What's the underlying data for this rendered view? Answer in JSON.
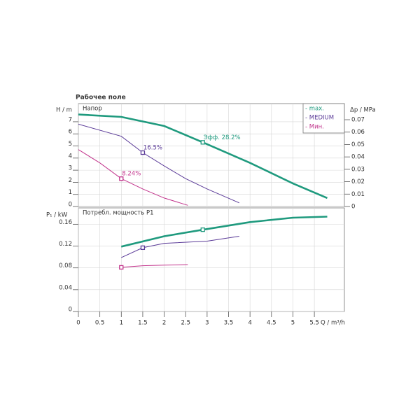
{
  "chart_data": [
    {
      "type": "line",
      "title": "Рабочее поле",
      "label": "Напор",
      "ylabel": "H / m",
      "y2label": "Δp / MPa",
      "ylim": [
        0,
        8.5
      ],
      "yticks": [
        0,
        1,
        2,
        3,
        4,
        5,
        6,
        7
      ],
      "y2lim": [
        0,
        0.083
      ],
      "y2ticks": [
        0,
        0.01,
        0.02,
        0.03,
        0.04,
        0.05,
        0.06,
        0.07
      ],
      "grid": true,
      "legend": "upper right",
      "series": [
        {
          "name": "- max.",
          "color": "#1f9a7e",
          "x": [
            0,
            1,
            2,
            2.9,
            4,
            5,
            5.8
          ],
          "values": [
            7.6,
            7.4,
            6.65,
            5.3,
            3.6,
            1.9,
            0.7
          ]
        },
        {
          "name": "- MEDIUM",
          "color": "#5b3b98",
          "x": [
            0,
            1,
            1.5,
            2,
            2.5,
            3,
            3.75
          ],
          "values": [
            6.8,
            5.8,
            4.45,
            3.35,
            2.3,
            1.45,
            0.3
          ]
        },
        {
          "name": "- Мин.",
          "color": "#c2348c",
          "x": [
            0,
            0.5,
            1,
            1.5,
            2,
            2.55
          ],
          "values": [
            4.7,
            3.6,
            2.3,
            1.45,
            0.7,
            0.1
          ]
        }
      ],
      "annotations": [
        {
          "text": "Эфф.  28.2%",
          "x": 2.9,
          "y": 5.3,
          "color": "#1f9a7e"
        },
        {
          "text": "16.5%",
          "x": 1.5,
          "y": 4.45,
          "color": "#5b3b98"
        },
        {
          "text": "8.24%",
          "x": 1,
          "y": 2.3,
          "color": "#c2348c"
        }
      ]
    },
    {
      "type": "line",
      "label": "Потребл. мощность P1",
      "ylabel": "P₁ / kW",
      "xlabel": "Q / m³/h",
      "xlim": [
        0,
        6.2
      ],
      "xticks": [
        0,
        0.5,
        1,
        1.5,
        2,
        2.5,
        3,
        3.5,
        4,
        4.5,
        5,
        5.5
      ],
      "ylim": [
        0,
        0.19
      ],
      "yticks": [
        0,
        0.04,
        0.08,
        0.12,
        0.16
      ],
      "grid": true,
      "series": [
        {
          "color": "#1f9a7e",
          "x": [
            1,
            2,
            2.9,
            4,
            5,
            5.8
          ],
          "values": [
            0.119,
            0.138,
            0.15,
            0.164,
            0.172,
            0.174
          ]
        },
        {
          "color": "#5b3b98",
          "x": [
            1,
            1.5,
            2,
            3,
            3.75
          ],
          "values": [
            0.099,
            0.117,
            0.125,
            0.129,
            0.138
          ]
        },
        {
          "color": "#c2348c",
          "x": [
            1,
            1.5,
            2,
            2.55
          ],
          "values": [
            0.081,
            0.084,
            0.085,
            0.086
          ]
        }
      ],
      "markers": [
        {
          "x": 2.9,
          "y": 0.15,
          "color": "#1f9a7e"
        },
        {
          "x": 1.5,
          "y": 0.117,
          "color": "#5b3b98"
        },
        {
          "x": 1,
          "y": 0.081,
          "color": "#c2348c"
        }
      ]
    }
  ]
}
